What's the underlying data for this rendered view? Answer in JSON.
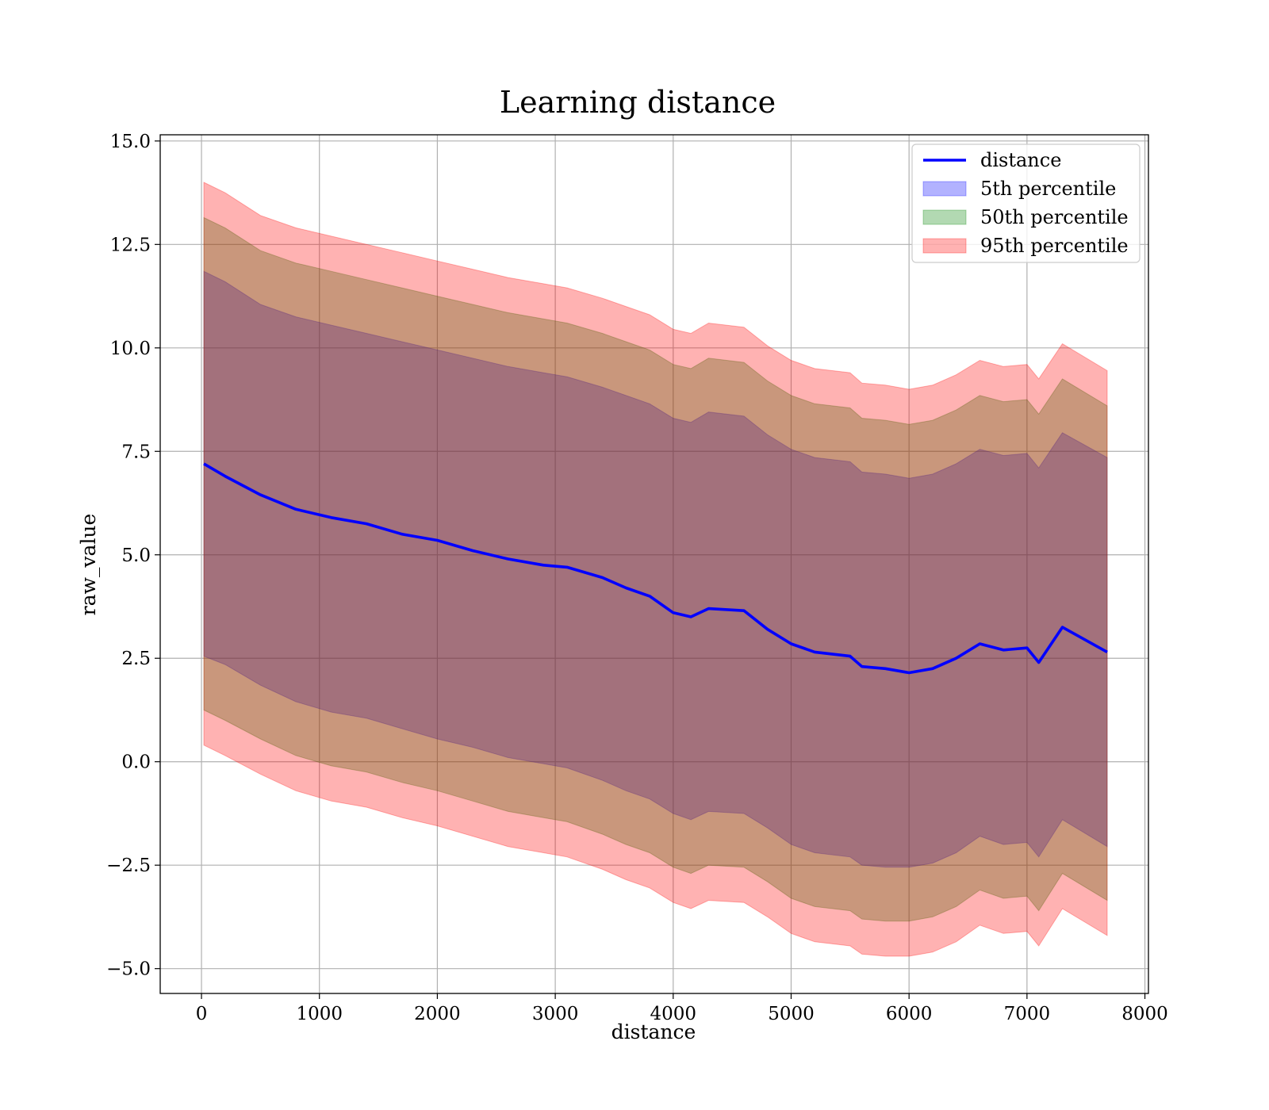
{
  "chart_data": {
    "type": "line",
    "title": "Learning distance",
    "xlabel": "distance",
    "ylabel": "raw_value",
    "xlim": [
      -350,
      8030
    ],
    "ylim": [
      -5.6,
      15.15
    ],
    "xticks": [
      0,
      1000,
      2000,
      3000,
      4000,
      5000,
      6000,
      7000,
      8000
    ],
    "xtick_labels": [
      "0",
      "1000",
      "2000",
      "3000",
      "4000",
      "5000",
      "6000",
      "7000",
      "8000"
    ],
    "yticks": [
      -5.0,
      -2.5,
      0.0,
      2.5,
      5.0,
      7.5,
      10.0,
      12.5,
      15.0
    ],
    "ytick_labels": [
      "−5.0",
      "−2.5",
      "0.0",
      "2.5",
      "5.0",
      "7.5",
      "10.0",
      "12.5",
      "15.0"
    ],
    "grid": true,
    "legend_position": "top-right",
    "x": [
      20,
      200,
      500,
      800,
      1100,
      1400,
      1700,
      2000,
      2300,
      2600,
      2900,
      3100,
      3400,
      3600,
      3800,
      4000,
      4150,
      4300,
      4600,
      4800,
      5000,
      5200,
      5500,
      5600,
      5800,
      6000,
      6200,
      6400,
      6600,
      6800,
      7000,
      7100,
      7300,
      7680
    ],
    "series": [
      {
        "name": "distance",
        "kind": "line",
        "color": "#0000ff",
        "values": [
          7.2,
          6.9,
          6.45,
          6.1,
          5.9,
          5.75,
          5.5,
          5.35,
          5.1,
          4.9,
          4.75,
          4.7,
          4.45,
          4.2,
          4.0,
          3.6,
          3.5,
          3.7,
          3.65,
          3.2,
          2.85,
          2.65,
          2.55,
          2.3,
          2.25,
          2.15,
          2.25,
          2.5,
          2.85,
          2.7,
          2.75,
          2.4,
          3.25,
          2.65
        ]
      },
      {
        "name": "5th percentile",
        "kind": "band",
        "color": "#0000ff",
        "lower": [
          2.55,
          2.35,
          1.85,
          1.45,
          1.2,
          1.05,
          0.8,
          0.55,
          0.35,
          0.1,
          -0.05,
          -0.15,
          -0.45,
          -0.7,
          -0.9,
          -1.25,
          -1.4,
          -1.2,
          -1.25,
          -1.6,
          -2.0,
          -2.2,
          -2.3,
          -2.5,
          -2.55,
          -2.55,
          -2.45,
          -2.2,
          -1.8,
          -2.0,
          -1.95,
          -2.3,
          -1.4,
          -2.05
        ],
        "upper": [
          11.85,
          11.6,
          11.05,
          10.75,
          10.55,
          10.35,
          10.15,
          9.95,
          9.75,
          9.55,
          9.4,
          9.3,
          9.05,
          8.85,
          8.65,
          8.3,
          8.2,
          8.45,
          8.35,
          7.9,
          7.55,
          7.35,
          7.25,
          7.0,
          6.95,
          6.85,
          6.95,
          7.2,
          7.55,
          7.4,
          7.45,
          7.1,
          7.95,
          7.35
        ]
      },
      {
        "name": "50th percentile",
        "kind": "band",
        "color": "#008000",
        "lower": [
          1.25,
          1.0,
          0.55,
          0.15,
          -0.1,
          -0.25,
          -0.5,
          -0.7,
          -0.95,
          -1.2,
          -1.35,
          -1.45,
          -1.75,
          -2.0,
          -2.2,
          -2.55,
          -2.7,
          -2.5,
          -2.55,
          -2.9,
          -3.3,
          -3.5,
          -3.6,
          -3.8,
          -3.85,
          -3.85,
          -3.75,
          -3.5,
          -3.1,
          -3.3,
          -3.25,
          -3.6,
          -2.7,
          -3.35
        ],
        "upper": [
          13.15,
          12.9,
          12.35,
          12.05,
          11.85,
          11.65,
          11.45,
          11.25,
          11.05,
          10.85,
          10.7,
          10.6,
          10.35,
          10.15,
          9.95,
          9.6,
          9.5,
          9.75,
          9.65,
          9.2,
          8.85,
          8.65,
          8.55,
          8.3,
          8.25,
          8.15,
          8.25,
          8.5,
          8.85,
          8.7,
          8.75,
          8.4,
          9.25,
          8.6
        ]
      },
      {
        "name": "95th percentile",
        "kind": "band",
        "color": "#ff0000",
        "lower": [
          0.4,
          0.15,
          -0.3,
          -0.7,
          -0.95,
          -1.1,
          -1.35,
          -1.55,
          -1.8,
          -2.05,
          -2.2,
          -2.3,
          -2.6,
          -2.85,
          -3.05,
          -3.4,
          -3.55,
          -3.35,
          -3.4,
          -3.75,
          -4.15,
          -4.35,
          -4.45,
          -4.65,
          -4.7,
          -4.7,
          -4.6,
          -4.35,
          -3.95,
          -4.15,
          -4.1,
          -4.45,
          -3.55,
          -4.2
        ],
        "upper": [
          14.0,
          13.75,
          13.2,
          12.9,
          12.7,
          12.5,
          12.3,
          12.1,
          11.9,
          11.7,
          11.55,
          11.45,
          11.2,
          11.0,
          10.8,
          10.45,
          10.35,
          10.6,
          10.5,
          10.05,
          9.7,
          9.5,
          9.4,
          9.15,
          9.1,
          9.0,
          9.1,
          9.35,
          9.7,
          9.55,
          9.6,
          9.25,
          10.1,
          9.45
        ]
      }
    ]
  }
}
